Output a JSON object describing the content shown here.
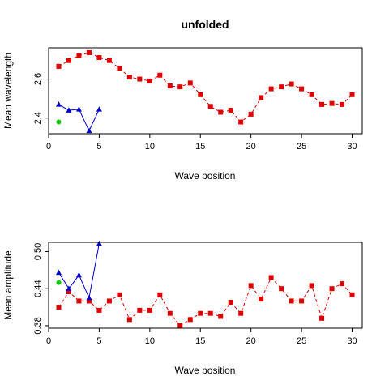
{
  "chart_data": [
    {
      "type": "line",
      "title": "unfolded",
      "xlabel": "Wave position",
      "ylabel": "Mean wavelength",
      "xlim": [
        0,
        31
      ],
      "ylim": [
        2.32,
        2.76
      ],
      "xticks": [
        "0",
        "5",
        "10",
        "15",
        "20",
        "25",
        "30"
      ],
      "yticks": [
        "2.4",
        "2.6"
      ],
      "grid": false,
      "legend": "none",
      "series": [
        {
          "color": "#dd0000",
          "marker": "square",
          "line": "dashed",
          "x": [
            1,
            2,
            3,
            4,
            5,
            6,
            7,
            8,
            9,
            10,
            11,
            12,
            13,
            14,
            15,
            16,
            17,
            18,
            19,
            20,
            21,
            22,
            23,
            24,
            25,
            26,
            27,
            28,
            29,
            30
          ],
          "y": [
            2.665,
            2.695,
            2.72,
            2.735,
            2.71,
            2.695,
            2.655,
            2.61,
            2.6,
            2.59,
            2.62,
            2.565,
            2.56,
            2.58,
            2.52,
            2.46,
            2.43,
            2.44,
            2.38,
            2.42,
            2.505,
            2.55,
            2.56,
            2.575,
            2.55,
            2.52,
            2.47,
            2.475,
            2.47,
            2.52
          ]
        },
        {
          "color": "#0000cc",
          "marker": "triangle",
          "line": "solid",
          "x": [
            1,
            2,
            3,
            4,
            5
          ],
          "y": [
            2.47,
            2.44,
            2.445,
            2.335,
            2.445
          ]
        },
        {
          "color": "#00cc00",
          "marker": "circle",
          "line": "none",
          "x": [
            1
          ],
          "y": [
            2.38
          ]
        }
      ]
    },
    {
      "type": "line",
      "title": "",
      "xlabel": "Wave position",
      "ylabel": "Mean amplitude",
      "xlim": [
        0,
        31
      ],
      "ylim": [
        0.376,
        0.515
      ],
      "xticks": [
        "0",
        "5",
        "10",
        "15",
        "20",
        "25",
        "30"
      ],
      "yticks": [
        "0.38",
        "0.44",
        "0.50"
      ],
      "grid": false,
      "legend": "none",
      "series": [
        {
          "color": "#dd0000",
          "marker": "square",
          "line": "dashed",
          "x": [
            1,
            2,
            3,
            4,
            5,
            6,
            7,
            8,
            9,
            10,
            11,
            12,
            13,
            14,
            15,
            16,
            17,
            18,
            19,
            20,
            21,
            22,
            23,
            24,
            25,
            26,
            27,
            28,
            29,
            30
          ],
          "y": [
            0.41,
            0.435,
            0.42,
            0.42,
            0.405,
            0.42,
            0.43,
            0.39,
            0.405,
            0.405,
            0.43,
            0.4,
            0.38,
            0.39,
            0.4,
            0.4,
            0.395,
            0.418,
            0.4,
            0.445,
            0.423,
            0.458,
            0.44,
            0.42,
            0.42,
            0.445,
            0.392,
            0.44,
            0.448,
            0.43
          ]
        },
        {
          "color": "#0000cc",
          "marker": "triangle",
          "line": "solid",
          "x": [
            1,
            2,
            3,
            4,
            5
          ],
          "y": [
            0.466,
            0.44,
            0.462,
            0.425,
            0.513
          ]
        },
        {
          "color": "#00cc00",
          "marker": "circle",
          "line": "none",
          "x": [
            1
          ],
          "y": [
            0.45
          ]
        }
      ]
    }
  ]
}
